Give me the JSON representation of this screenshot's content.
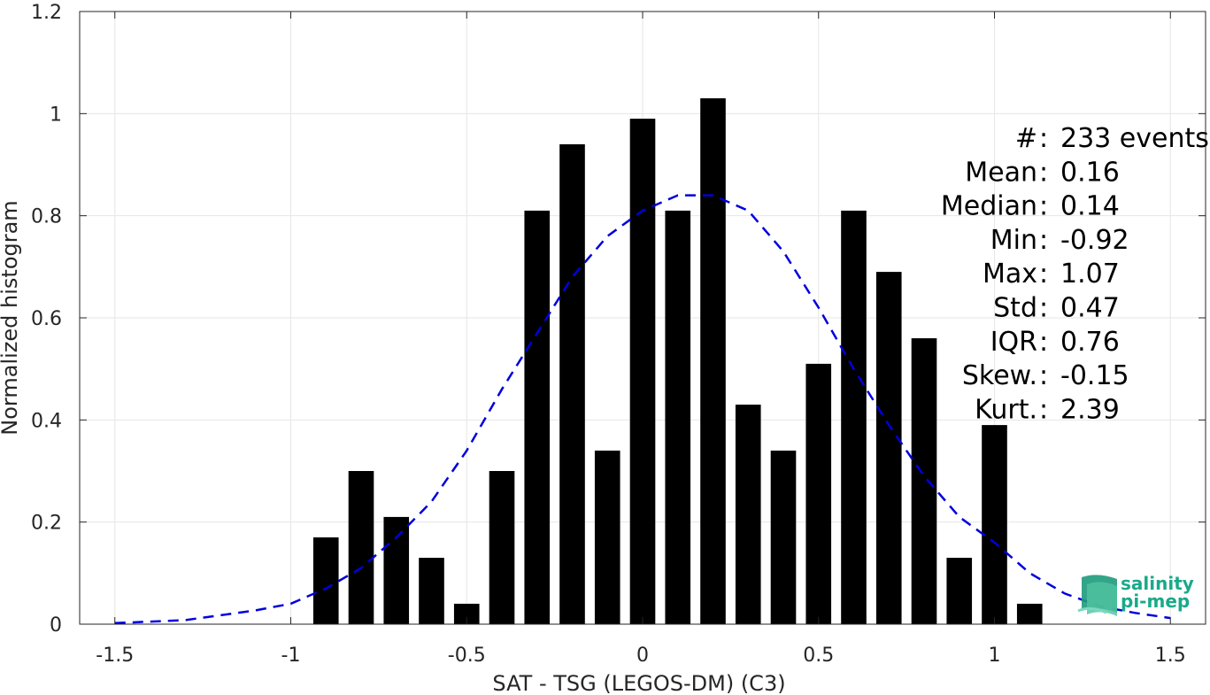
{
  "chart_data": {
    "type": "bar",
    "xlabel": "SAT - TSG (LEGOS-DM) (C3)",
    "ylabel": "Normalized histogram",
    "xlim": [
      -1.6,
      1.6
    ],
    "ylim": [
      0,
      1.2
    ],
    "xticks": [
      -1.5,
      -1,
      -0.5,
      0,
      0.5,
      1,
      1.5
    ],
    "xtick_labels": [
      "-1.5",
      "-1",
      "-0.5",
      "0",
      "0.5",
      "1",
      "1.5"
    ],
    "yticks": [
      0,
      0.2,
      0.4,
      0.6,
      0.8,
      1,
      1.2
    ],
    "ytick_labels": [
      "0",
      "0.2",
      "0.4",
      "0.6",
      "0.8",
      "1",
      "1.2"
    ],
    "grid": true,
    "bar_width": 0.072,
    "bars": {
      "x": [
        -0.9,
        -0.8,
        -0.7,
        -0.6,
        -0.5,
        -0.4,
        -0.3,
        -0.2,
        -0.1,
        0.0,
        0.1,
        0.2,
        0.3,
        0.4,
        0.5,
        0.6,
        0.7,
        0.8,
        0.9,
        1.0,
        1.1
      ],
      "values": [
        0.17,
        0.3,
        0.21,
        0.13,
        0.04,
        0.3,
        0.81,
        0.94,
        0.34,
        0.99,
        0.81,
        1.03,
        0.43,
        0.34,
        0.51,
        0.81,
        0.69,
        0.56,
        0.13,
        0.39,
        0.04
      ],
      "color": "#000000"
    },
    "fit_curve": {
      "style": "dashed",
      "color": "#0000dd",
      "x": [
        -1.5,
        -1.3,
        -1.1,
        -1.0,
        -0.9,
        -0.8,
        -0.7,
        -0.6,
        -0.5,
        -0.4,
        -0.3,
        -0.2,
        -0.1,
        0.0,
        0.1,
        0.2,
        0.3,
        0.4,
        0.5,
        0.6,
        0.7,
        0.8,
        0.9,
        1.0,
        1.1,
        1.2,
        1.3,
        1.4,
        1.5
      ],
      "y": [
        0.002,
        0.008,
        0.027,
        0.04,
        0.07,
        0.11,
        0.17,
        0.24,
        0.34,
        0.46,
        0.57,
        0.68,
        0.76,
        0.81,
        0.84,
        0.84,
        0.81,
        0.73,
        0.62,
        0.5,
        0.39,
        0.29,
        0.21,
        0.16,
        0.1,
        0.06,
        0.035,
        0.022,
        0.012
      ]
    },
    "stats": [
      {
        "label": "#",
        "sep": " : ",
        "value": "233 events"
      },
      {
        "label": "Mean",
        "sep": " : ",
        "value": "0.16"
      },
      {
        "label": "Median",
        "sep": " : ",
        "value": "0.14"
      },
      {
        "label": "Min",
        "sep": " : ",
        "value": "-0.92"
      },
      {
        "label": "Max",
        "sep": " : ",
        "value": "1.07"
      },
      {
        "label": "Std",
        "sep": " : ",
        "value": "0.47"
      },
      {
        "label": "IQR",
        "sep": " : ",
        "value": "0.76"
      },
      {
        "label": "Skew.",
        "sep": " : ",
        "value": "-0.15"
      },
      {
        "label": "Kurt.",
        "sep": " : ",
        "value": "2.39"
      }
    ]
  },
  "logo": {
    "line1": "salinity",
    "line2": "pi-mep"
  }
}
